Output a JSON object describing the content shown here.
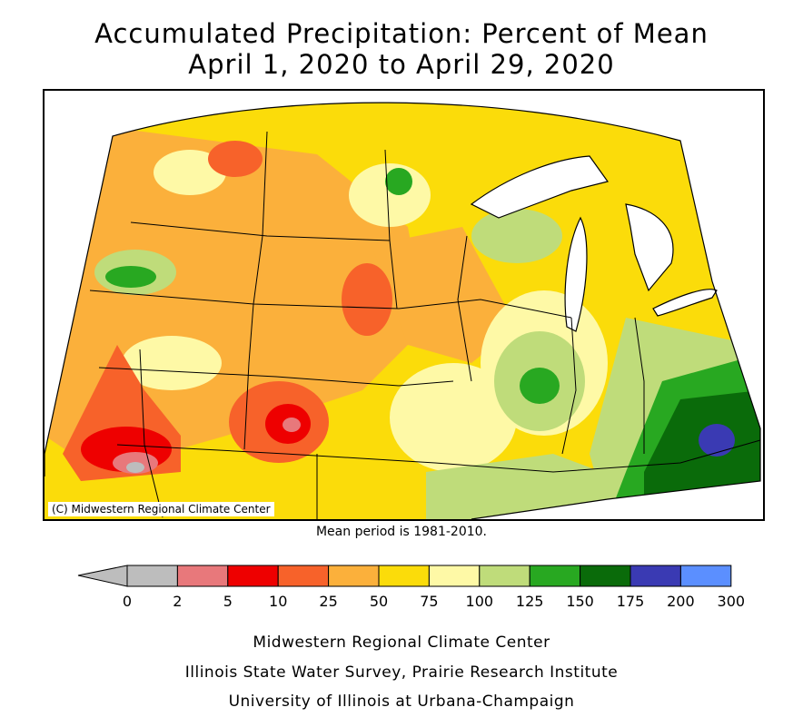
{
  "title_line1": "Accumulated Precipitation: Percent of Mean",
  "title_line2": "April 1, 2020 to April 29, 2020",
  "copyright": "(C) Midwestern Regional Climate Center",
  "mean_note": "Mean period is 1981-2010.",
  "legend": {
    "ticks": [
      "0",
      "2",
      "5",
      "10",
      "25",
      "50",
      "75",
      "100",
      "125",
      "150",
      "175",
      "200",
      "300"
    ],
    "colors": [
      "#bdbdbd",
      "#e8787b",
      "#ee0000",
      "#f7622a",
      "#fbb03b",
      "#fbdc0a",
      "#fef9a6",
      "#bfdc7a",
      "#28a821",
      "#0a6b0a",
      "#3a3ab3",
      "#5b8fff"
    ],
    "arrow_color": "#bdbdbd"
  },
  "credits": [
    "Midwestern Regional Climate Center",
    "Illinois State Water Survey, Prairie Research Institute",
    "University of Illinois at Urbana-Champaign"
  ]
}
